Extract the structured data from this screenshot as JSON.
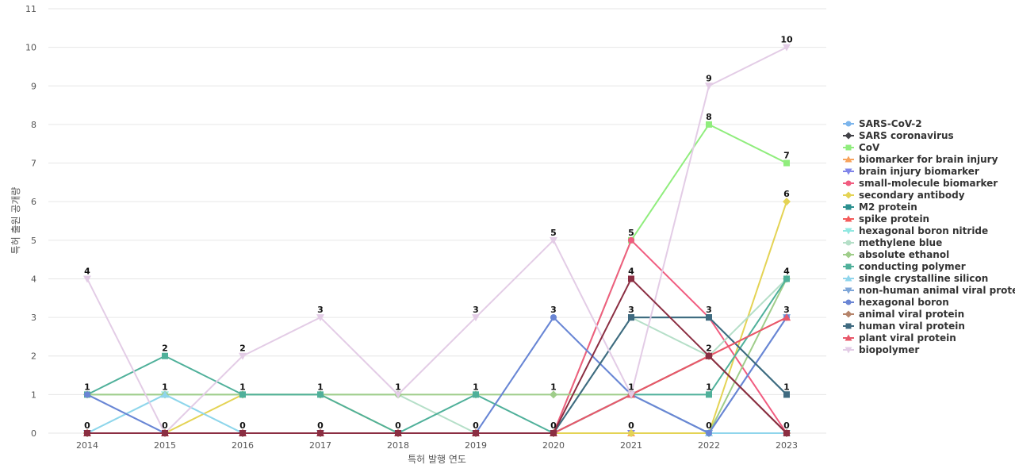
{
  "chart_data": {
    "type": "line",
    "title": "",
    "xlabel": "특허 발행 연도",
    "ylabel": "특허 출원 공개량",
    "x": [
      "2014",
      "2015",
      "2016",
      "2017",
      "2018",
      "2019",
      "2020",
      "2021",
      "2022",
      "2023"
    ],
    "ylim": [
      0,
      11
    ],
    "yticks": [
      "0",
      "1",
      "2",
      "3",
      "4",
      "5",
      "6",
      "7",
      "8",
      "9",
      "10",
      "11"
    ],
    "grid": true,
    "legend_position": "right",
    "series": [
      {
        "name": "SARS-CoV-2",
        "color": "#7cb5ec",
        "marker": "circle",
        "values": [
          1,
          0,
          0,
          0,
          0,
          0,
          3,
          1,
          0,
          3
        ]
      },
      {
        "name": "SARS coronavirus",
        "color": "#434348",
        "marker": "diamond",
        "values": [
          0,
          0,
          0,
          0,
          0,
          0,
          0,
          1,
          2,
          0
        ]
      },
      {
        "name": "CoV",
        "color": "#90ed7d",
        "marker": "square",
        "values": [
          0,
          0,
          0,
          0,
          0,
          0,
          0,
          5,
          8,
          7
        ]
      },
      {
        "name": "biomarker for brain injury",
        "color": "#f7a35c",
        "marker": "triangle",
        "values": [
          0,
          0,
          0,
          0,
          0,
          0,
          0,
          0,
          0,
          0
        ]
      },
      {
        "name": "brain injury biomarker",
        "color": "#8085e9",
        "marker": "triangle-down",
        "values": [
          0,
          0,
          0,
          0,
          0,
          0,
          0,
          0,
          0,
          0
        ]
      },
      {
        "name": "small-molecule biomarker",
        "color": "#f15c80",
        "marker": "circle",
        "values": [
          0,
          0,
          0,
          0,
          0,
          0,
          0,
          5,
          3,
          0
        ]
      },
      {
        "name": "secondary antibody",
        "color": "#e4d354",
        "marker": "diamond",
        "values": [
          0,
          0,
          1,
          1,
          0,
          0,
          0,
          0,
          0,
          6
        ]
      },
      {
        "name": "M2 protein",
        "color": "#2b908f",
        "marker": "square",
        "values": [
          0,
          0,
          0,
          0,
          0,
          0,
          0,
          3,
          3,
          1
        ]
      },
      {
        "name": "spike protein",
        "color": "#f45b5b",
        "marker": "triangle",
        "values": [
          0,
          0,
          0,
          0,
          0,
          0,
          0,
          1,
          2,
          3
        ]
      },
      {
        "name": "hexagonal boron nitride",
        "color": "#91e8e1",
        "marker": "triangle-down",
        "values": [
          0,
          1,
          0,
          0,
          0,
          0,
          0,
          1,
          0,
          0
        ]
      },
      {
        "name": "methylene blue",
        "color": "#b5dfc8",
        "marker": "circle",
        "values": [
          1,
          1,
          1,
          1,
          1,
          0,
          0,
          3,
          2,
          4
        ]
      },
      {
        "name": "absolute ethanol",
        "color": "#9fcd8a",
        "marker": "diamond",
        "values": [
          1,
          1,
          1,
          1,
          1,
          1,
          1,
          1,
          0,
          4
        ]
      },
      {
        "name": "conducting polymer",
        "color": "#4fb09a",
        "marker": "square",
        "values": [
          1,
          2,
          1,
          1,
          0,
          1,
          0,
          1,
          1,
          4
        ]
      },
      {
        "name": "single crystalline silicon",
        "color": "#8fd5ec",
        "marker": "triangle",
        "values": [
          0,
          1,
          0,
          0,
          0,
          0,
          0,
          1,
          0,
          0
        ]
      },
      {
        "name": "non-human animal viral protein",
        "color": "#7ea6d8",
        "marker": "triangle-down",
        "values": [
          0,
          0,
          0,
          0,
          0,
          0,
          0,
          1,
          0,
          3
        ]
      },
      {
        "name": "hexagonal boron",
        "color": "#6a85d4",
        "marker": "circle",
        "values": [
          1,
          0,
          0,
          0,
          0,
          0,
          3,
          1,
          0,
          3
        ]
      },
      {
        "name": "animal viral protein",
        "color": "#b5836a",
        "marker": "diamond",
        "values": [
          0,
          0,
          0,
          0,
          0,
          0,
          0,
          1,
          2,
          0
        ]
      },
      {
        "name": "human viral protein",
        "color": "#3f6a80",
        "marker": "square",
        "values": [
          0,
          0,
          0,
          0,
          0,
          0,
          0,
          3,
          3,
          1
        ]
      },
      {
        "name": "plant viral protein",
        "color": "#e8586a",
        "marker": "triangle",
        "values": [
          0,
          0,
          0,
          0,
          0,
          0,
          0,
          1,
          2,
          3
        ]
      },
      {
        "name": "biopolymer",
        "color": "#e3cce6",
        "marker": "triangle-down",
        "values": [
          4,
          0,
          2,
          3,
          1,
          3,
          5,
          1,
          9,
          10
        ]
      }
    ],
    "overlay_series": [
      {
        "color": "#8b2e42",
        "marker": "square",
        "values": [
          0,
          0,
          0,
          0,
          0,
          0,
          0,
          4,
          2,
          0
        ]
      }
    ],
    "data_labels": [
      {
        "x": "2014",
        "values": [
          "4",
          "1",
          "0"
        ]
      },
      {
        "x": "2015",
        "values": [
          "2",
          "1",
          "0"
        ]
      },
      {
        "x": "2016",
        "values": [
          "2",
          "1",
          "0"
        ]
      },
      {
        "x": "2017",
        "values": [
          "3",
          "1",
          "0"
        ]
      },
      {
        "x": "2018",
        "values": [
          "1",
          "0"
        ]
      },
      {
        "x": "2019",
        "values": [
          "3",
          "1",
          "0"
        ]
      },
      {
        "x": "2020",
        "values": [
          "5",
          "3",
          "1",
          "0"
        ]
      },
      {
        "x": "2021",
        "values": [
          "5",
          "4",
          "3",
          "1",
          "0"
        ]
      },
      {
        "x": "2022",
        "values": [
          "9",
          "8",
          "3",
          "2",
          "1",
          "0"
        ]
      },
      {
        "x": "2023",
        "values": [
          "10",
          "7",
          "6",
          "4",
          "3",
          "1",
          "0"
        ]
      }
    ]
  }
}
